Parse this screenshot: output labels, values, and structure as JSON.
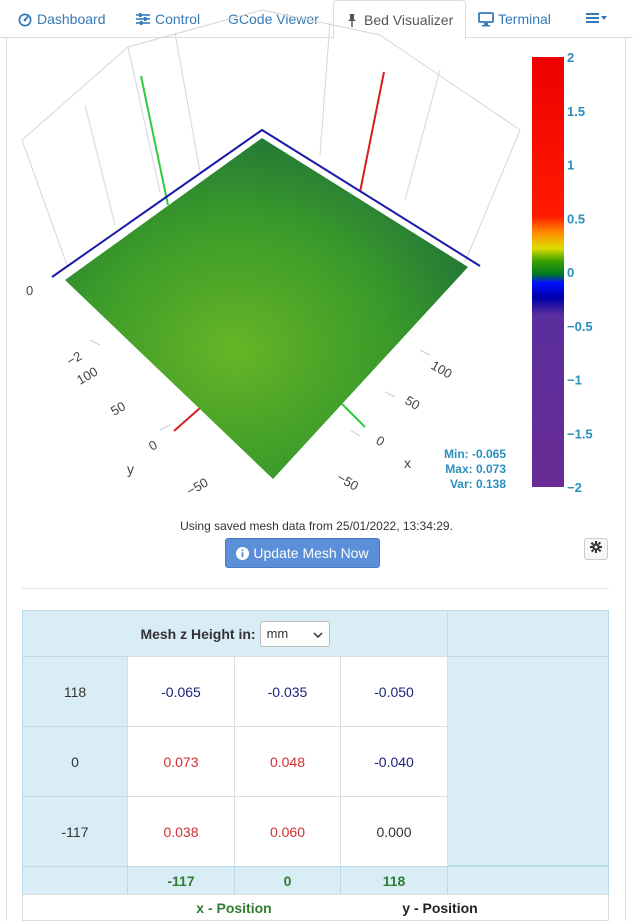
{
  "nav": {
    "tabs": [
      {
        "label": "Dashboard",
        "icon": "dashboard-icon"
      },
      {
        "label": "Control",
        "icon": "sliders-icon"
      },
      {
        "label": "GCode Viewer",
        "icon": ""
      },
      {
        "label": "Bed Visualizer",
        "icon": "pin-icon"
      },
      {
        "label": "Terminal",
        "icon": "monitor-icon"
      }
    ],
    "active_tab": "Bed Visualizer",
    "menu_icon": "list-menu-icon"
  },
  "plot": {
    "axis_x": {
      "label": "x",
      "ticks": [
        "0",
        "50",
        "100"
      ],
      "tick_prefix_neg": "−50"
    },
    "axis_y": {
      "label": "y",
      "ticks": [
        "−50",
        "0",
        "50",
        "100"
      ]
    },
    "axis_z": {
      "ticks": [
        "0",
        "−2"
      ]
    },
    "colorscale": {
      "ticks": [
        "2",
        "1.5",
        "1",
        "0.5",
        "0",
        "−0.5",
        "−1",
        "−1.5",
        "−2"
      ],
      "range": [
        -2,
        2
      ]
    },
    "stats": {
      "min": "Min: -0.065",
      "max": "Max: 0.073",
      "var": "Var: 0.138"
    },
    "surface_colors": {
      "base": "#3a9a2a",
      "dark": "#1e6e3a",
      "light": "#66b526"
    }
  },
  "mesh_note": "Using saved mesh data from 25/01/2022, 13:34:29.",
  "update_button": "Update Mesh Now",
  "mesh_table": {
    "unit_label": "Mesh z Height in:",
    "unit_value": "mm",
    "rows": [
      {
        "y": "118",
        "values": [
          "-0.065",
          "-0.035",
          "-0.050"
        ]
      },
      {
        "y": "0",
        "values": [
          "0.073",
          "0.048",
          "-0.040"
        ]
      },
      {
        "y": "-117",
        "values": [
          "0.038",
          "0.060",
          "0.000"
        ]
      }
    ],
    "x_positions": [
      "-117",
      "0",
      "118"
    ],
    "x_label": "x - Position",
    "y_label": "y - Position"
  }
}
